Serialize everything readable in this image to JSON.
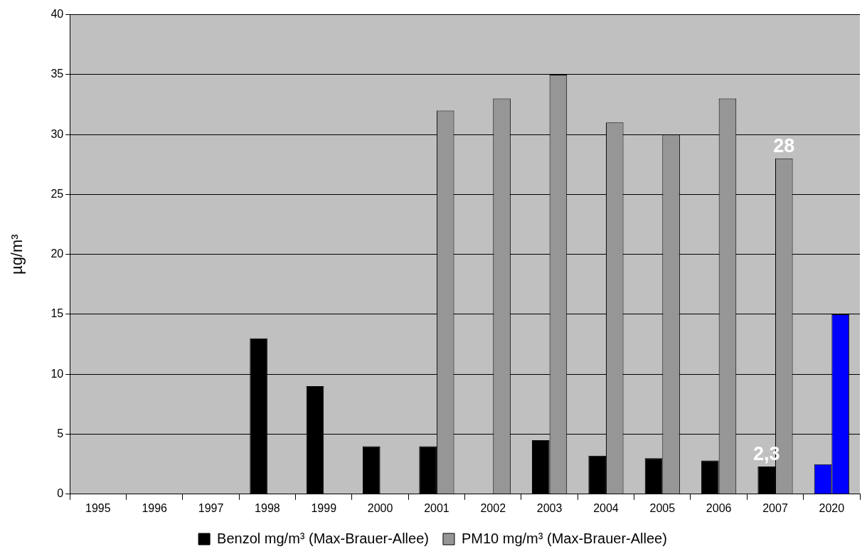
{
  "chart_data": {
    "type": "bar",
    "ylabel": "µg/m³",
    "categories": [
      "1995",
      "1996",
      "1997",
      "1998",
      "1999",
      "2000",
      "2001",
      "2002",
      "2003",
      "2004",
      "2005",
      "2006",
      "2007",
      "2020"
    ],
    "series": [
      {
        "name": "Benzol mg/m³ (Max-Brauer-Allee)",
        "color": "#000000",
        "colors": [
          "#000000",
          "#000000",
          "#000000",
          "#000000",
          "#000000",
          "#000000",
          "#000000",
          "#000000",
          "#000000",
          "#000000",
          "#000000",
          "#000000",
          "#000000",
          "#0000ff"
        ],
        "values": [
          null,
          null,
          null,
          13,
          9,
          4,
          4,
          null,
          4.5,
          3.2,
          3,
          2.8,
          2.3,
          2.5
        ]
      },
      {
        "name": "PM10 mg/m³ (Max-Brauer-Allee)",
        "color": "#969696",
        "colors": [
          "#969696",
          "#969696",
          "#969696",
          "#969696",
          "#969696",
          "#969696",
          "#969696",
          "#969696",
          "#969696",
          "#969696",
          "#969696",
          "#969696",
          "#969696",
          "#0000ff"
        ],
        "values": [
          null,
          null,
          null,
          null,
          null,
          null,
          32,
          33,
          35,
          31,
          30,
          33,
          28,
          15
        ]
      }
    ],
    "ylim": [
      0,
      40
    ],
    "yticks": [
      0,
      5,
      10,
      15,
      20,
      25,
      30,
      35,
      40
    ],
    "grid": "y",
    "legend": "bottom",
    "annotations": [
      {
        "text": "2,3",
        "x": "2007",
        "y": 2.3
      },
      {
        "text": "28",
        "x": "2007",
        "y": 28
      }
    ]
  }
}
